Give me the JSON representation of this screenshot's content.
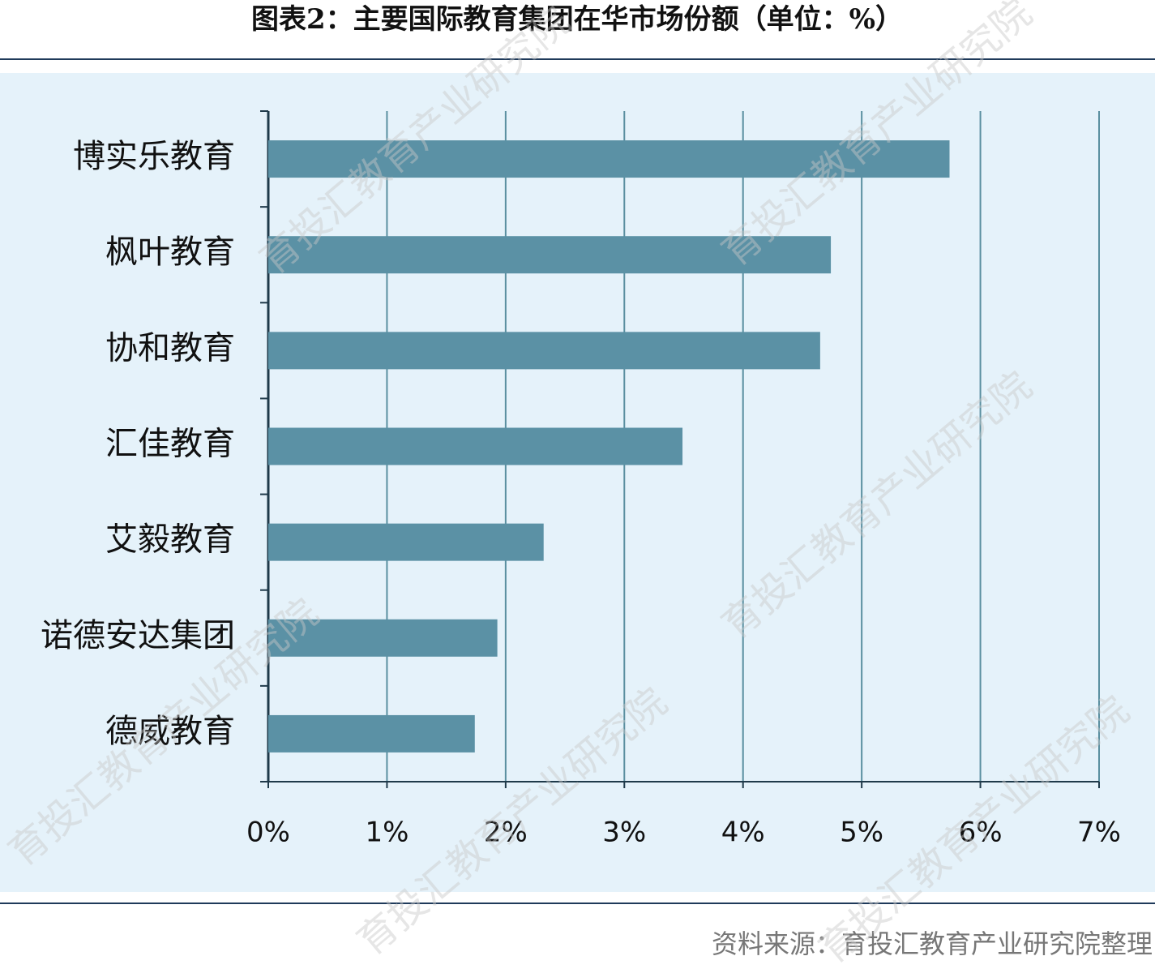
{
  "chart_data": {
    "type": "bar",
    "orientation": "horizontal",
    "title": "图表2：主要国际教育集团在华市场份额（单位：%）",
    "source": "资料来源：育投汇教育产业研究院整理",
    "watermark": "育投汇教育产业研究院",
    "categories": [
      "博实乐教育",
      "枫叶教育",
      "协和教育",
      "汇佳教育",
      "艾毅教育",
      "诺德安达集团",
      "德威教育"
    ],
    "values": [
      5.74,
      4.74,
      4.65,
      3.49,
      2.32,
      1.93,
      1.74
    ],
    "color": "#5b91a5",
    "xlim": [
      0,
      7
    ],
    "xticks": [
      {
        "value": 0,
        "label": "0%"
      },
      {
        "value": 1,
        "label": "1%"
      },
      {
        "value": 2,
        "label": "2%"
      },
      {
        "value": 3,
        "label": "3%"
      },
      {
        "value": 4,
        "label": "4%"
      },
      {
        "value": 5,
        "label": "5%"
      },
      {
        "value": 6,
        "label": "6%"
      },
      {
        "value": 7,
        "label": "7%"
      }
    ],
    "grid": true
  }
}
